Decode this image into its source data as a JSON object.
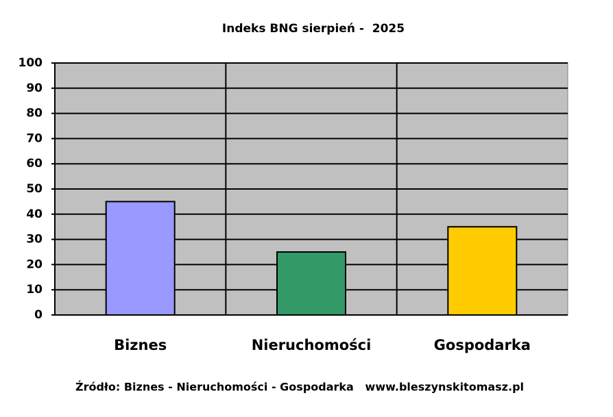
{
  "chart_data": {
    "type": "bar",
    "title": "Indeks BNG sierpień -  2025",
    "categories": [
      "Biznes",
      "Nieruchomości",
      "Gospodarka"
    ],
    "values": [
      45,
      25,
      35
    ],
    "colors": [
      "#9999ff",
      "#339966",
      "#ffcc00"
    ],
    "ylim": [
      0,
      100
    ],
    "yticks": [
      0,
      10,
      20,
      30,
      40,
      50,
      60,
      70,
      80,
      90,
      100
    ],
    "grid": true,
    "source": "Źródło: Biznes - Nieruchomości - Gospodarka   www.bleszynskitomasz.pl"
  }
}
